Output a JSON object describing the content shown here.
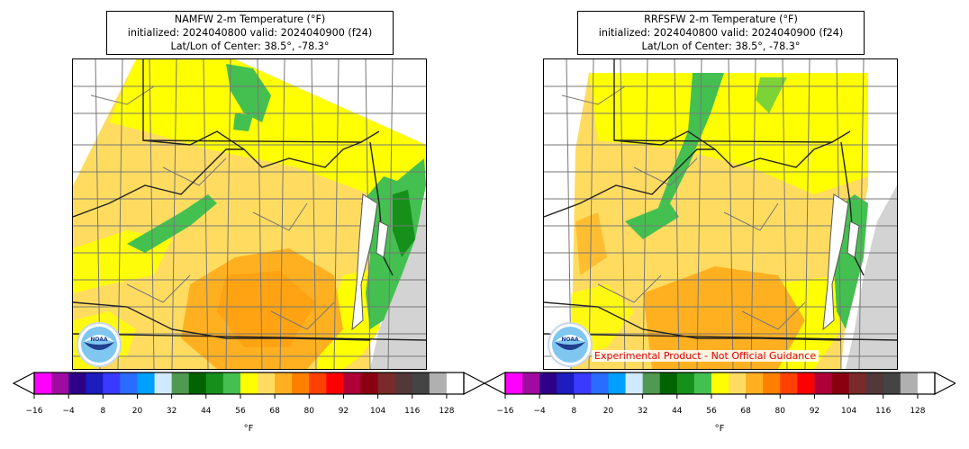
{
  "panels": [
    {
      "title_line1": "NAMFW 2-m Temperature (°F)",
      "title_line2": "initialized: 2024040800 valid: 2024040900 (f24)",
      "title_line3": "Lat/Lon of Center: 38.5°, -78.3°",
      "logo_text": "NOAA",
      "experimental_label": ""
    },
    {
      "title_line1": "RRFSFW 2-m Temperature (°F)",
      "title_line2": "initialized: 2024040800 valid: 2024040900 (f24)",
      "title_line3": "Lat/Lon of Center: 38.5°, -78.3°",
      "logo_text": "NOAA",
      "experimental_label": "Experimental Product - Not Official Guidance"
    }
  ],
  "colorbar": {
    "unit": "°F",
    "tick_labels": [
      "−16",
      "−4",
      "8",
      "20",
      "32",
      "44",
      "56",
      "68",
      "80",
      "92",
      "104",
      "116",
      "128"
    ],
    "colors": [
      "#ff00ff",
      "#a10aa0",
      "#2e0088",
      "#1c1cbf",
      "#3a3aff",
      "#2a6cff",
      "#00a0ff",
      "#cfeaff",
      "#4f9a50",
      "#006400",
      "#16901a",
      "#44c050",
      "#ffff00",
      "#ffdc60",
      "#ffb020",
      "#ff8000",
      "#ff4000",
      "#ff0000",
      "#b0003a",
      "#8a0010",
      "#7a2a2a",
      "#523838",
      "#444444",
      "#b0b0b0",
      "#ffffff"
    ]
  },
  "map_colors": {
    "ocean": "#d3d3d3",
    "green": "#44c050",
    "darkgreen": "#16901a",
    "yellow": "#ffff00",
    "lightorange": "#ffdc60",
    "orange": "#ffb020",
    "county": "#777777",
    "state": "#222222"
  }
}
